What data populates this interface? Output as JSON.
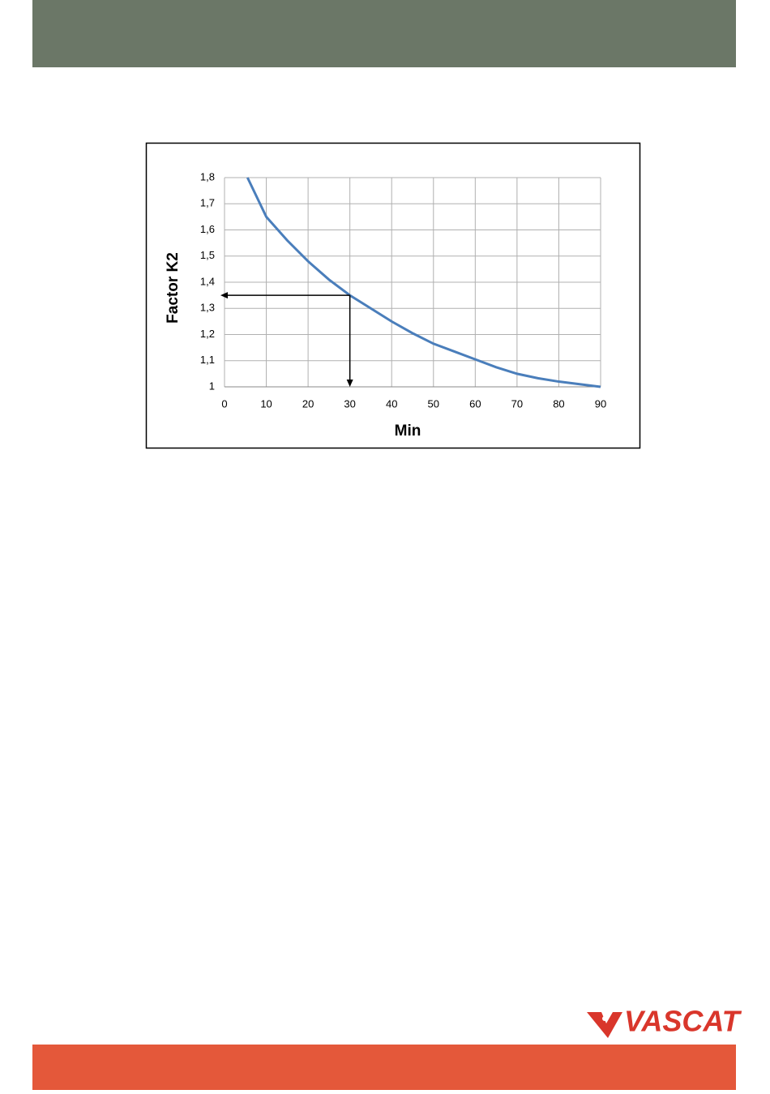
{
  "brand": "VASCAT",
  "chart_data": {
    "type": "line",
    "x": [
      5.5,
      10,
      15,
      20,
      25,
      30,
      35,
      40,
      45,
      50,
      55,
      60,
      65,
      70,
      75,
      80,
      85,
      90
    ],
    "values": [
      1.8,
      1.65,
      1.56,
      1.48,
      1.41,
      1.35,
      1.3,
      1.25,
      1.205,
      1.165,
      1.135,
      1.105,
      1.075,
      1.05,
      1.033,
      1.02,
      1.01,
      1.0
    ],
    "color": "#4a7ebb",
    "xlabel": "Min",
    "ylabel": "Factor K2",
    "xlim": [
      0,
      90
    ],
    "xticks": [
      0,
      10,
      20,
      30,
      40,
      50,
      60,
      70,
      80,
      90
    ],
    "ylim": [
      1,
      1.8
    ],
    "yticks": [
      1,
      {
        "value": 1.1,
        "label": "1,1"
      },
      {
        "value": 1.2,
        "label": "1,2"
      },
      {
        "value": 1.3,
        "label": "1,3"
      },
      {
        "value": 1.4,
        "label": "1,4"
      },
      {
        "value": 1.5,
        "label": "1,5"
      },
      {
        "value": 1.6,
        "label": "1,6"
      },
      {
        "value": 1.7,
        "label": "1,7"
      },
      {
        "value": 1.8,
        "label": "1,8"
      }
    ],
    "grid": true,
    "reference_point": {
      "x": 30,
      "y": 1.35
    }
  }
}
